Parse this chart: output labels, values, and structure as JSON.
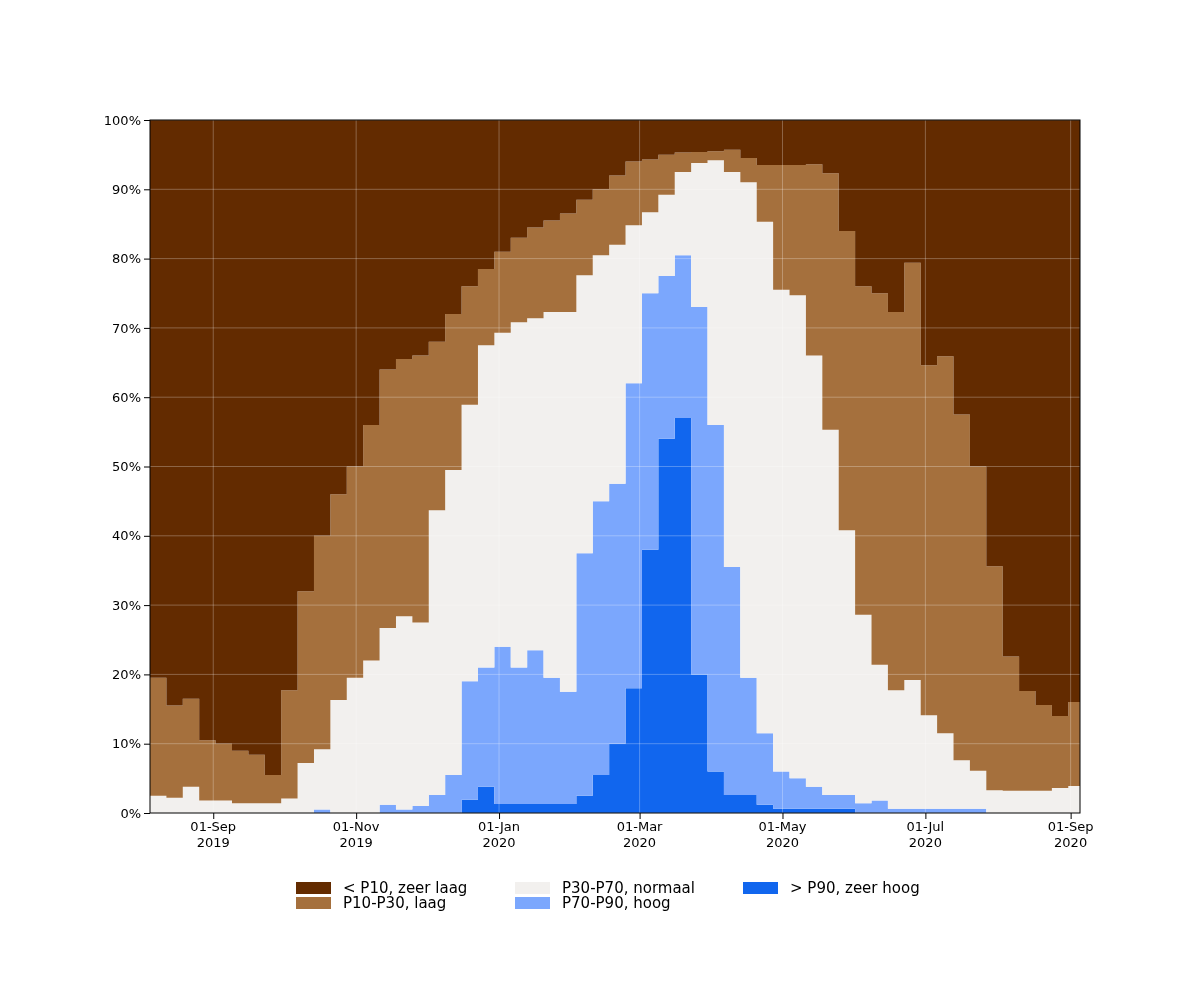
{
  "chart_data": {
    "type": "area",
    "stacked": true,
    "grid": true,
    "legend": "bottom",
    "x": [
      "2019-08-05",
      "2019-08-12",
      "2019-08-19",
      "2019-08-26",
      "2019-09-02",
      "2019-09-09",
      "2019-09-16",
      "2019-09-23",
      "2019-09-30",
      "2019-10-07",
      "2019-10-14",
      "2019-10-21",
      "2019-10-28",
      "2019-11-04",
      "2019-11-11",
      "2019-11-18",
      "2019-11-25",
      "2019-12-02",
      "2019-12-09",
      "2019-12-16",
      "2019-12-23",
      "2019-12-30",
      "2020-01-06",
      "2020-01-13",
      "2020-01-20",
      "2020-01-27",
      "2020-02-03",
      "2020-02-10",
      "2020-02-17",
      "2020-02-24",
      "2020-03-02",
      "2020-03-09",
      "2020-03-16",
      "2020-03-23",
      "2020-03-30",
      "2020-04-06",
      "2020-04-13",
      "2020-04-20",
      "2020-04-27",
      "2020-05-04",
      "2020-05-11",
      "2020-05-18",
      "2020-05-25",
      "2020-06-01",
      "2020-06-08",
      "2020-06-15",
      "2020-06-22",
      "2020-06-29",
      "2020-07-06",
      "2020-07-13",
      "2020-07-20",
      "2020-07-27",
      "2020-08-03",
      "2020-08-10",
      "2020-08-17",
      "2020-08-24",
      "2020-08-31",
      "2020-09-05"
    ],
    "xlim": [
      "2019-08-05",
      "2020-09-05"
    ],
    "xticks": [
      {
        "value": "2019-09-01",
        "label": "01-Sep\n2019"
      },
      {
        "value": "2019-11-01",
        "label": "01-Nov\n2019"
      },
      {
        "value": "2020-01-01",
        "label": "01-Jan\n2020"
      },
      {
        "value": "2020-03-01",
        "label": "01-Mar\n2020"
      },
      {
        "value": "2020-05-01",
        "label": "01-May\n2020"
      },
      {
        "value": "2020-07-01",
        "label": "01-Jul\n2020"
      },
      {
        "value": "2020-09-01",
        "label": "01-Sep\n2020"
      }
    ],
    "ylim": [
      0,
      100
    ],
    "yticks": [
      {
        "value": 0,
        "label": "0%"
      },
      {
        "value": 10,
        "label": "10%"
      },
      {
        "value": 20,
        "label": "20%"
      },
      {
        "value": 30,
        "label": "30%"
      },
      {
        "value": 40,
        "label": "40%"
      },
      {
        "value": 50,
        "label": "50%"
      },
      {
        "value": 60,
        "label": "60%"
      },
      {
        "value": 70,
        "label": "70%"
      },
      {
        "value": 80,
        "label": "80%"
      },
      {
        "value": 90,
        "label": "90%"
      },
      {
        "value": 100,
        "label": "100%"
      }
    ],
    "series": [
      {
        "name": "> P90, zeer hoog",
        "color": "#1166ee",
        "values": [
          0,
          0,
          0,
          0,
          0,
          0,
          0,
          0,
          0,
          0,
          0,
          0,
          0,
          0,
          0,
          0,
          0,
          0,
          0,
          1.9,
          3.8,
          1.3,
          1.3,
          1.3,
          1.3,
          1.3,
          2.5,
          5.5,
          10,
          18,
          38,
          54,
          57,
          20,
          6,
          2.6,
          2.6,
          1.2,
          0.6,
          0.6,
          0.6,
          0.6,
          0.6,
          0,
          0,
          0,
          0,
          0,
          0,
          0,
          0,
          0,
          0,
          0,
          0,
          0,
          0,
          0
        ]
      },
      {
        "name": "P70-P90, hoog",
        "color": "#7ba7fd",
        "values": [
          0,
          0,
          0,
          0,
          0,
          0,
          0,
          0,
          0,
          0,
          0.5,
          0,
          0,
          0,
          1.2,
          0.5,
          1,
          2.6,
          5.5,
          17.1,
          17.2,
          22.7,
          19.7,
          22.2,
          18.2,
          16.2,
          35,
          39.5,
          37.5,
          44,
          37,
          23.5,
          23.5,
          53,
          50,
          32.9,
          16.9,
          10.3,
          5.4,
          4.4,
          3.2,
          2,
          2,
          1.4,
          1.8,
          0.6,
          0.6,
          0.6,
          0.6,
          0.6,
          0.6,
          0,
          0,
          0,
          0,
          0,
          0,
          0
        ]
      },
      {
        "name": "P30-P70, normaal",
        "color": "#f2f0ee",
        "values": [
          2.5,
          2.2,
          3.8,
          1.8,
          1.8,
          1.4,
          1.4,
          1.4,
          2.1,
          7.2,
          8.7,
          16.3,
          19.5,
          22,
          25.5,
          27.9,
          26.5,
          41.1,
          44,
          39.9,
          46.5,
          45.3,
          49.8,
          47.9,
          52.8,
          54.8,
          40.1,
          35.5,
          34.5,
          22.8,
          11.7,
          11.7,
          12,
          20.8,
          38.2,
          57,
          71.5,
          73.8,
          69.5,
          69.7,
          62.2,
          52.7,
          38.2,
          27.2,
          19.6,
          17.1,
          18.6,
          13.5,
          10.9,
          7,
          5.5,
          3.3,
          3.2,
          3.2,
          3.2,
          3.6,
          3.9,
          3.2
        ]
      },
      {
        "name": "P10-P30, laag",
        "color": "#a5703d",
        "values": [
          17,
          13.3,
          12.7,
          8.7,
          8.2,
          7.6,
          7,
          4.1,
          15.6,
          24.8,
          30.8,
          29.7,
          30.5,
          34,
          37.3,
          37.1,
          38.5,
          24.3,
          22.5,
          17.1,
          11,
          11.7,
          12.2,
          13.1,
          13.2,
          14.2,
          10.9,
          9.5,
          10,
          9.2,
          7.6,
          5.8,
          2.8,
          1.6,
          1.3,
          3.2,
          3.5,
          8.2,
          18,
          18.8,
          27.6,
          37,
          43.2,
          47.4,
          53.6,
          54.6,
          60.2,
          50.5,
          54.4,
          49.9,
          43.9,
          32.3,
          19.4,
          14.4,
          12.4,
          10.4,
          12.1,
          12.4
        ]
      },
      {
        "name": "< P10, zeer laag",
        "color": "#632b00",
        "values": [
          80.5,
          84.5,
          83.5,
          89.5,
          90,
          91,
          91.6,
          94.5,
          82.3,
          68,
          60,
          54,
          50,
          44,
          36,
          34.5,
          34,
          32,
          28,
          24,
          21.5,
          19,
          17,
          15.5,
          14.5,
          13.5,
          11.5,
          10,
          8,
          6,
          5.7,
          5,
          4.7,
          4.6,
          4.5,
          4.3,
          5.5,
          6.5,
          6.5,
          6.5,
          6.4,
          7.7,
          16,
          24,
          25,
          27.7,
          20.6,
          35.4,
          34.1,
          42.5,
          50,
          64.4,
          77.4,
          82.4,
          84.4,
          86,
          84,
          84.4
        ]
      }
    ]
  }
}
